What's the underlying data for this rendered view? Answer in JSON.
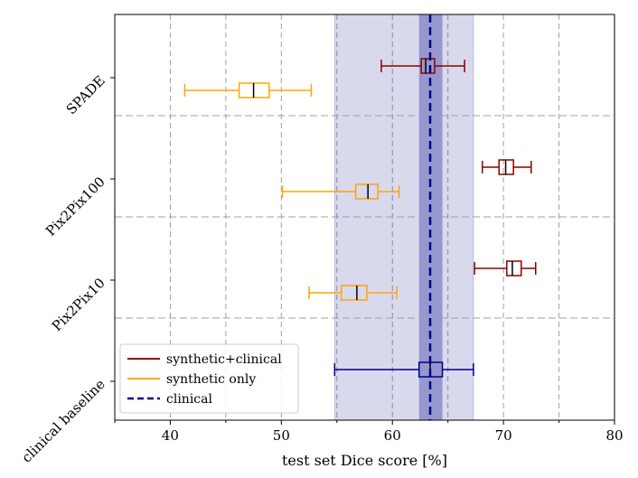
{
  "chart_data": {
    "type": "boxplot",
    "xlabel": "test set Dice score [%]",
    "xlim": [
      35,
      80
    ],
    "xticks": [
      "40",
      "50",
      "60",
      "70",
      "80"
    ],
    "categories": [
      "SPADE",
      "Pix2Pix100",
      "Pix2Pix10",
      "clinical baseline"
    ],
    "series": [
      {
        "name": "synthetic+clinical",
        "color": "#8b0000",
        "boxes": [
          {
            "category": "SPADE",
            "min": 59.0,
            "q1": 62.6,
            "median": 63.0,
            "q3": 63.8,
            "max": 66.5
          },
          {
            "category": "Pix2Pix100",
            "min": 68.1,
            "q1": 69.6,
            "median": 70.2,
            "q3": 70.9,
            "max": 72.5
          },
          {
            "category": "Pix2Pix10",
            "min": 67.4,
            "q1": 70.3,
            "median": 70.8,
            "q3": 71.6,
            "max": 72.9
          }
        ]
      },
      {
        "name": "synthetic only",
        "color": "#ffa500",
        "boxes": [
          {
            "category": "SPADE",
            "min": 41.3,
            "q1": 46.2,
            "median": 47.5,
            "q3": 48.9,
            "max": 52.7
          },
          {
            "category": "Pix2Pix100",
            "min": 50.1,
            "q1": 56.7,
            "median": 57.8,
            "q3": 58.7,
            "max": 60.6
          },
          {
            "category": "Pix2Pix10",
            "min": 52.5,
            "q1": 55.4,
            "median": 56.8,
            "q3": 57.7,
            "max": 60.4
          }
        ]
      },
      {
        "name": "clinical baseline",
        "color": "#00008b",
        "boxes": [
          {
            "category": "clinical baseline",
            "min": 54.8,
            "q1": 62.4,
            "median": 63.4,
            "q3": 64.5,
            "max": 67.3
          }
        ]
      }
    ],
    "reference": {
      "name": "clinical",
      "color": "#00008b",
      "value": 63.4,
      "band_inner": [
        62.4,
        64.5
      ],
      "band_outer": [
        54.8,
        67.3
      ]
    },
    "legend": {
      "position": "lower-left",
      "entries": [
        {
          "label": "synthetic+clinical",
          "color": "#8b0000",
          "style": "solid"
        },
        {
          "label": "synthetic only",
          "color": "#ffa500",
          "style": "solid"
        },
        {
          "label": "clinical",
          "color": "#00008b",
          "style": "dashed"
        }
      ]
    },
    "grid": true
  }
}
